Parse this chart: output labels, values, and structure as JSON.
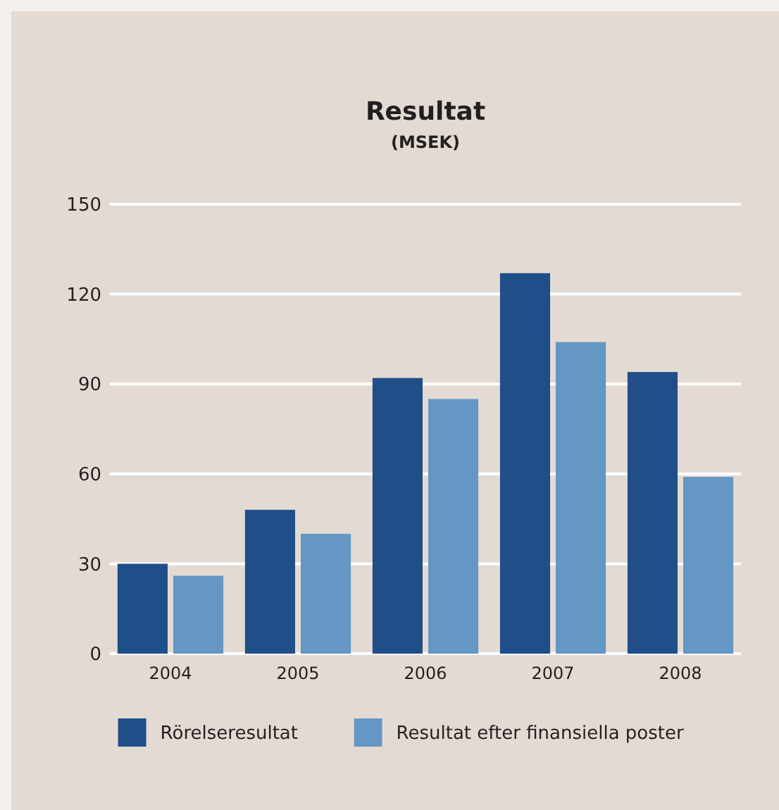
{
  "chart_data": {
    "type": "bar",
    "title": "Resultat",
    "subtitle": "(MSEK)",
    "categories": [
      "2004",
      "2005",
      "2006",
      "2007",
      "2008"
    ],
    "series": [
      {
        "name": "Rörelseresultat",
        "color": "#1f4e89",
        "values": [
          30,
          48,
          92,
          127,
          94
        ]
      },
      {
        "name": "Resultat efter finansiella poster",
        "color": "#6497c3",
        "values": [
          26,
          40,
          85,
          104,
          59
        ]
      }
    ],
    "ylim": [
      0,
      150
    ],
    "yticks": [
      0,
      30,
      60,
      90,
      120,
      150
    ],
    "grid": "y",
    "legend": "bottom"
  }
}
